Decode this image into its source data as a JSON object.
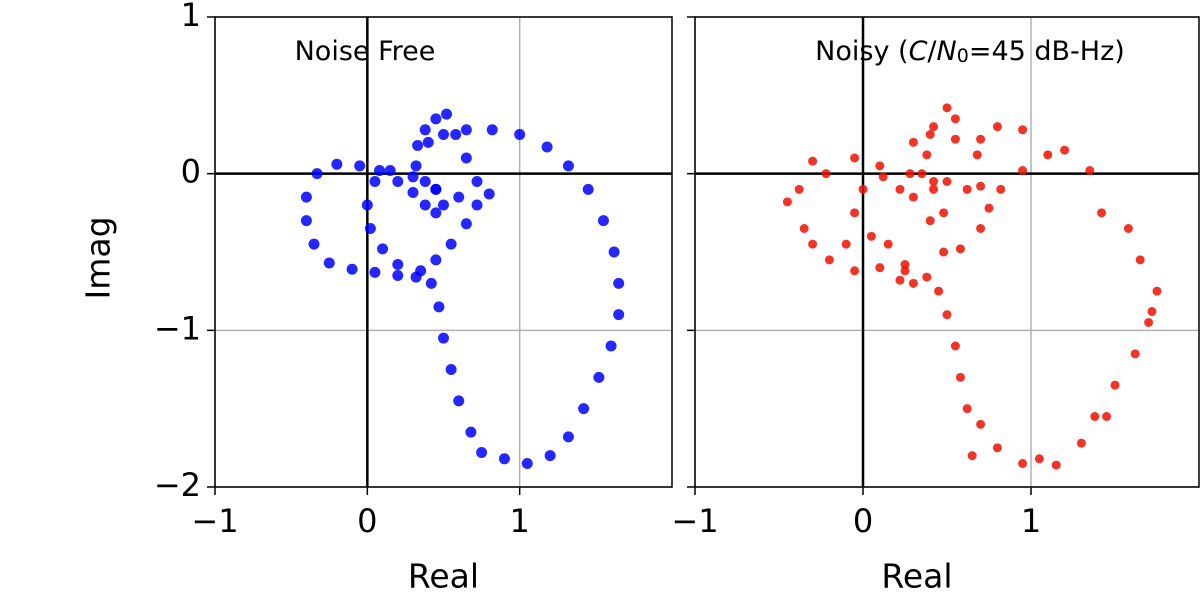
{
  "chart_data": [
    {
      "type": "scatter",
      "annotation": [
        "Noise Free"
      ],
      "xlabel": "Real",
      "ylabel": "Imag",
      "xlim": [
        -1,
        2
      ],
      "ylim": [
        -2,
        1
      ],
      "xticks": [
        {
          "value": -1,
          "label": "−1"
        },
        0,
        1
      ],
      "yticks": [
        {
          "value": -2,
          "label": "−2"
        },
        {
          "value": -1,
          "label": "−1"
        },
        0,
        1
      ],
      "grid": true,
      "color": "#0000ff",
      "x": [
        0.8,
        0.72,
        0.65,
        0.58,
        0.52,
        0.45,
        0.38,
        0.33,
        0.32,
        0.38,
        0.45,
        0.5,
        0.45,
        0.38,
        0.3,
        0.2,
        0.08,
        -0.05,
        -0.2,
        -0.33,
        -0.4,
        -0.4,
        -0.35,
        -0.25,
        -0.1,
        0.05,
        0.2,
        0.35,
        0.45,
        0.55,
        0.65,
        0.72,
        0.6,
        0.45,
        0.3,
        0.15,
        0.05,
        0,
        0.02,
        0.1,
        0.2,
        0.32,
        0.42,
        0.47,
        0.5,
        0.55,
        0.6,
        0.68,
        0.75,
        0.9,
        1.05,
        1.2,
        1.32,
        1.42,
        1.52,
        1.6,
        1.65,
        1.65,
        1.62,
        1.55,
        1.45,
        1.32,
        1.18,
        1.0,
        0.82,
        0.65,
        0.5,
        0.4
      ],
      "values": [
        -0.13,
        -0.05,
        0.1,
        0.25,
        0.38,
        0.35,
        0.28,
        0.18,
        0.05,
        -0.05,
        -0.1,
        -0.2,
        -0.25,
        -0.2,
        -0.12,
        -0.05,
        0.02,
        0.05,
        0.06,
        0,
        -0.15,
        -0.3,
        -0.45,
        -0.57,
        -0.61,
        -0.63,
        -0.65,
        -0.62,
        -0.55,
        -0.45,
        -0.32,
        -0.2,
        -0.15,
        -0.1,
        -0.02,
        0.02,
        -0.05,
        -0.2,
        -0.35,
        -0.48,
        -0.58,
        -0.66,
        -0.7,
        -0.85,
        -1.05,
        -1.25,
        -1.45,
        -1.65,
        -1.78,
        -1.82,
        -1.85,
        -1.8,
        -1.68,
        -1.5,
        -1.3,
        -1.1,
        -0.9,
        -0.7,
        -0.5,
        -0.3,
        -0.1,
        0.05,
        0.17,
        0.25,
        0.28,
        0.28,
        0.25,
        0.2
      ]
    },
    {
      "type": "scatter",
      "annotation": [
        "Noisy (",
        "C",
        "/",
        "N",
        "0",
        "=45 dB-Hz)"
      ],
      "xlabel": "Real",
      "xlim": [
        -1,
        2
      ],
      "ylim": [
        -2,
        1
      ],
      "xticks": [
        {
          "value": -1,
          "label": "−1"
        },
        0,
        1
      ],
      "yticks": [
        -2,
        -1,
        0,
        1
      ],
      "grid": true,
      "color": "#ee1100",
      "x": [
        0.82,
        0.7,
        0.68,
        0.55,
        0.5,
        0.42,
        0.4,
        0.3,
        0.35,
        0.42,
        0.5,
        0.48,
        0.4,
        0.3,
        0.22,
        0.1,
        -0.05,
        -0.22,
        -0.3,
        -0.38,
        -0.45,
        -0.35,
        -0.3,
        -0.2,
        -0.05,
        0.1,
        0.22,
        0.38,
        0.48,
        0.58,
        0.7,
        0.75,
        0.62,
        0.42,
        0.28,
        0.12,
        0.0,
        -0.05,
        0.05,
        0.15,
        0.25,
        0.3,
        0.45,
        0.5,
        0.55,
        0.58,
        0.62,
        0.7,
        0.8,
        0.95,
        1.05,
        1.15,
        1.3,
        1.45,
        1.5,
        1.62,
        1.7,
        1.75,
        1.65,
        1.58,
        1.42,
        1.35,
        1.2,
        0.95,
        0.8,
        0.7,
        0.55,
        0.38,
        1.1,
        0.95,
        1.72,
        1.38,
        0.65,
        0.25,
        -0.1
      ],
      "values": [
        -0.1,
        -0.08,
        0.12,
        0.22,
        0.42,
        0.3,
        0.25,
        0.2,
        0.0,
        -0.1,
        -0.05,
        -0.25,
        -0.3,
        -0.15,
        -0.1,
        0.05,
        0.1,
        0.0,
        0.08,
        -0.1,
        -0.18,
        -0.35,
        -0.45,
        -0.55,
        -0.62,
        -0.6,
        -0.68,
        -0.66,
        -0.5,
        -0.48,
        -0.35,
        -0.22,
        -0.1,
        -0.05,
        0.0,
        -0.02,
        -0.1,
        -0.25,
        -0.4,
        -0.45,
        -0.62,
        -0.7,
        -0.75,
        -0.9,
        -1.1,
        -1.3,
        -1.5,
        -1.6,
        -1.75,
        -1.85,
        -1.82,
        -1.86,
        -1.72,
        -1.55,
        -1.35,
        -1.15,
        -0.95,
        -0.75,
        -0.55,
        -0.35,
        -0.25,
        0.02,
        0.15,
        0.28,
        0.3,
        0.22,
        0.35,
        0.12,
        0.12,
        0.02,
        -0.88,
        -1.55,
        -1.8,
        -0.58,
        -0.45
      ]
    }
  ]
}
